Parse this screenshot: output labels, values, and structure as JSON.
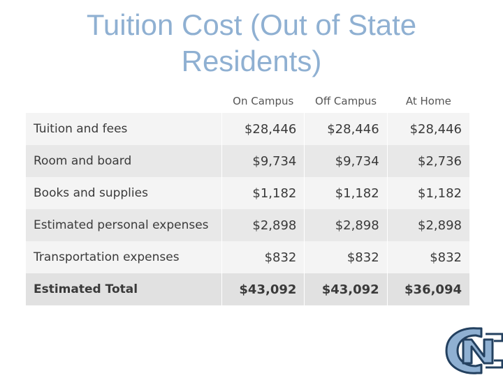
{
  "title": "Tuition Cost (Out of State Residents)",
  "table": {
    "columns": [
      "On Campus",
      "Off Campus",
      "At Home"
    ],
    "rows": [
      {
        "label": "Tuition and fees",
        "values": [
          "$28,446",
          "$28,446",
          "$28,446"
        ]
      },
      {
        "label": "Room and board",
        "values": [
          "$9,734",
          "$9,734",
          "$2,736"
        ]
      },
      {
        "label": "Books and supplies",
        "values": [
          "$1,182",
          "$1,182",
          "$1,182"
        ]
      },
      {
        "label": "Estimated personal expenses",
        "values": [
          "$2,898",
          "$2,898",
          "$2,898"
        ]
      },
      {
        "label": "Transportation expenses",
        "values": [
          "$832",
          "$832",
          "$832"
        ]
      },
      {
        "label": "Estimated Total",
        "values": [
          "$43,092",
          "$43,092",
          "$36,094"
        ]
      }
    ]
  },
  "logo": {
    "icon": "unc-nc-logo-icon",
    "color": "#8fb0d2"
  }
}
